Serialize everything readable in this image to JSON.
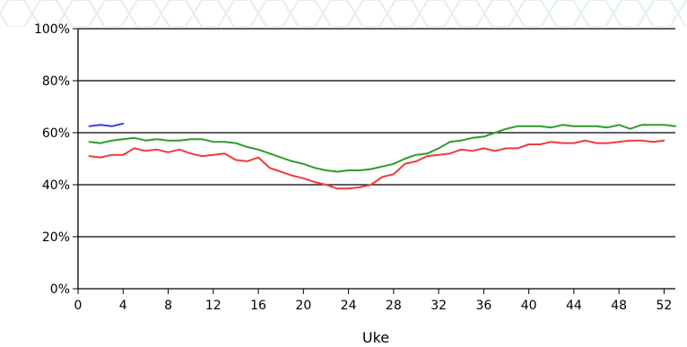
{
  "chart_data": {
    "type": "line",
    "xlabel": "Uke",
    "ylabel": "",
    "xlim": [
      0,
      53
    ],
    "ylim": [
      0,
      100
    ],
    "x_ticks": [
      0,
      4,
      8,
      12,
      16,
      20,
      24,
      28,
      32,
      36,
      40,
      44,
      48,
      52
    ],
    "x_tick_labels": [
      "0",
      "4",
      "8",
      "12",
      "16",
      "20",
      "24",
      "28",
      "32",
      "36",
      "40",
      "44",
      "48",
      "52"
    ],
    "y_ticks": [
      0,
      20,
      40,
      60,
      80,
      100
    ],
    "y_tick_labels": [
      "0%",
      "20%",
      "40%",
      "60%",
      "80%",
      "100%"
    ],
    "grid": "horizontal",
    "legend": "none",
    "background_pattern_color": "#e3eef2",
    "series": [
      {
        "color": "#3a3af0",
        "x": [
          1,
          2,
          3,
          4
        ],
        "values": [
          62.5,
          63,
          62.5,
          63.5
        ]
      },
      {
        "color": "#2f9a2f",
        "x": [
          1,
          2,
          3,
          4,
          5,
          6,
          7,
          8,
          9,
          10,
          11,
          12,
          13,
          14,
          15,
          16,
          17,
          18,
          19,
          20,
          21,
          22,
          23,
          24,
          25,
          26,
          27,
          28,
          29,
          30,
          31,
          32,
          33,
          34,
          35,
          36,
          37,
          38,
          39,
          40,
          41,
          42,
          43,
          44,
          45,
          46,
          47,
          48,
          49,
          50,
          51,
          52,
          53
        ],
        "values": [
          56.5,
          56,
          57,
          57.5,
          58,
          57,
          57.5,
          57,
          57,
          57.5,
          57.5,
          56.5,
          56.5,
          56,
          54.5,
          53.5,
          52,
          50.5,
          49,
          48,
          46.5,
          45.5,
          45,
          45.5,
          45.5,
          46,
          47,
          48,
          50,
          51.5,
          52,
          54,
          56.5,
          57,
          58,
          58.5,
          60,
          61.5,
          62.5,
          62.5,
          62.5,
          62,
          63,
          62.5,
          62.5,
          62.5,
          62,
          63,
          61.5,
          63,
          63,
          63,
          62.5
        ]
      },
      {
        "color": "#f03a3a",
        "x": [
          1,
          2,
          3,
          4,
          5,
          6,
          7,
          8,
          9,
          10,
          11,
          12,
          13,
          14,
          15,
          16,
          17,
          18,
          19,
          20,
          21,
          22,
          23,
          24,
          25,
          26,
          27,
          28,
          29,
          30,
          31,
          32,
          33,
          34,
          35,
          36,
          37,
          38,
          39,
          40,
          41,
          42,
          43,
          44,
          45,
          46,
          47,
          48,
          49,
          50,
          51,
          52
        ],
        "values": [
          51,
          50.5,
          51.5,
          51.5,
          54,
          53,
          53.5,
          52.5,
          53.5,
          52,
          51,
          51.5,
          52,
          49.5,
          49,
          50.5,
          46.5,
          45,
          43.5,
          42.5,
          41,
          40,
          38.5,
          38.5,
          39,
          40,
          43,
          44,
          48,
          49,
          51,
          51.5,
          52,
          53.5,
          53,
          54,
          53,
          54,
          54,
          55.5,
          55.5,
          56.5,
          56,
          56,
          57,
          56,
          56,
          56.5,
          57,
          57,
          56.5,
          57
        ]
      }
    ]
  }
}
